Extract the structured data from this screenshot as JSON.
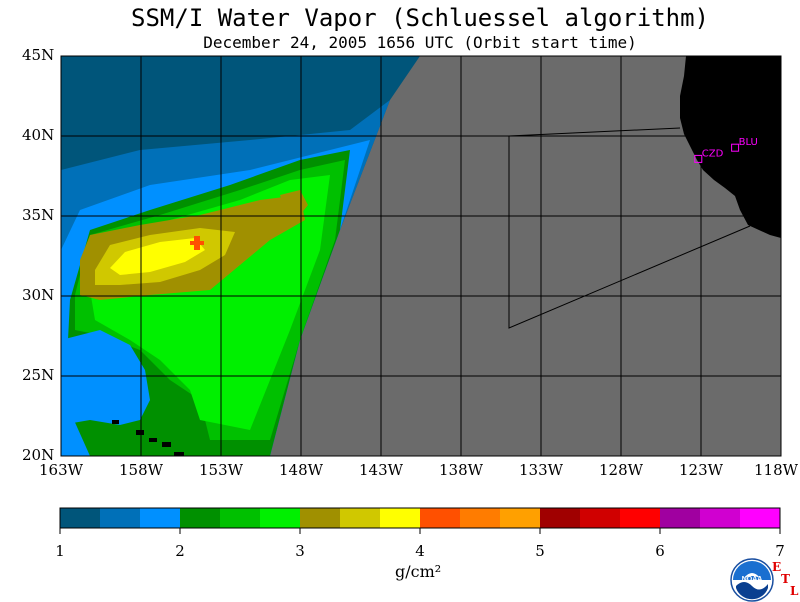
{
  "title": "SSM/I Water Vapor (Schluessel algorithm)",
  "subtitle": "December 24, 2005  1656 UTC  (Orbit start time)",
  "map": {
    "lat_labels": [
      "45N",
      "40N",
      "35N",
      "30N",
      "25N",
      "20N"
    ],
    "lon_labels": [
      "163W",
      "158W",
      "153W",
      "148W",
      "143W",
      "138W",
      "133W",
      "128W",
      "123W",
      "118W"
    ],
    "lat_range": [
      20,
      45
    ],
    "lon_range": [
      -163,
      -118
    ],
    "no_data_color": "#6b6b6b",
    "land_color": "#000000",
    "stations": [
      {
        "label": "CZD",
        "lon": -123.2,
        "lat": 38.6
      },
      {
        "label": "BLU",
        "lon": -120.9,
        "lat": 39.3
      }
    ],
    "station_color": "#ff00ff"
  },
  "colorbar": {
    "colors": [
      "#00557a",
      "#0070b8",
      "#0090ff",
      "#009000",
      "#00c000",
      "#00f000",
      "#a09000",
      "#d0c800",
      "#ffff00",
      "#ff5000",
      "#ff7c00",
      "#ffa000",
      "#a00000",
      "#d00000",
      "#ff0000",
      "#a000a0",
      "#d000d0",
      "#ff00ff"
    ],
    "tick_labels": [
      "1",
      "2",
      "3",
      "4",
      "5",
      "6",
      "7"
    ],
    "units": "g/cm²"
  },
  "logo": {
    "noaa_text": "NOAA",
    "etl": [
      "E",
      "T",
      "L"
    ]
  }
}
